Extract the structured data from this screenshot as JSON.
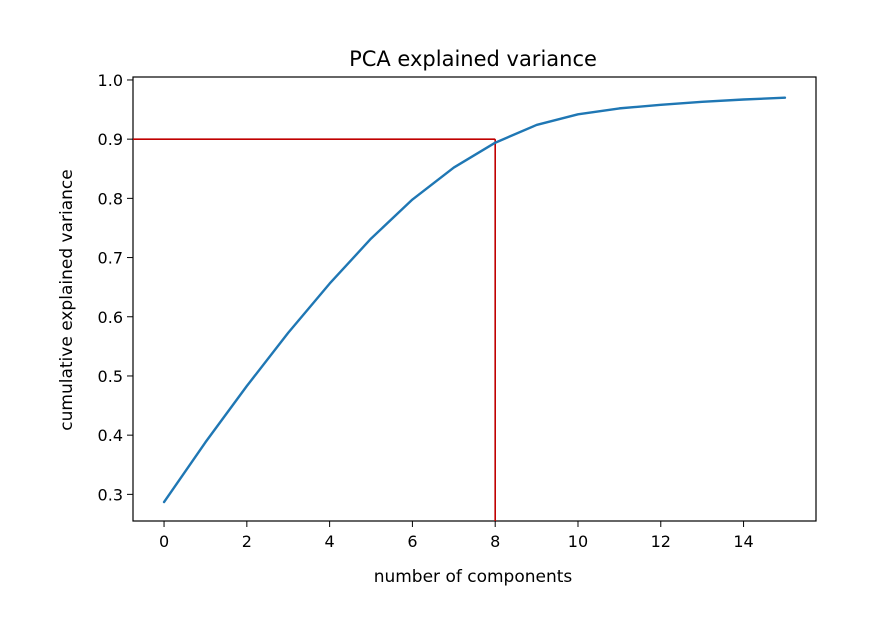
{
  "chart_data": {
    "type": "line",
    "title": "PCA explained variance",
    "xlabel": "number of components",
    "ylabel": "cumulative explained variance",
    "xlim": [
      -0.75,
      15.75
    ],
    "ylim": [
      0.255,
      1.005
    ],
    "x_ticks": [
      0,
      2,
      4,
      6,
      8,
      10,
      12,
      14
    ],
    "y_ticks": [
      0.3,
      0.4,
      0.5,
      0.6,
      0.7,
      0.8,
      0.9,
      1.0
    ],
    "x_tick_labels": [
      "0",
      "2",
      "4",
      "6",
      "8",
      "10",
      "12",
      "14"
    ],
    "y_tick_labels": [
      "0.3",
      "0.4",
      "0.5",
      "0.6",
      "0.7",
      "0.8",
      "0.9",
      "1.0"
    ],
    "grid": false,
    "series": [
      {
        "color": "#1f77b4",
        "x": [
          0,
          1,
          2,
          3,
          4,
          5,
          6,
          7,
          8,
          9,
          10,
          11,
          12,
          13,
          14,
          15
        ],
        "values": [
          0.287,
          0.388,
          0.483,
          0.573,
          0.656,
          0.732,
          0.798,
          0.852,
          0.894,
          0.924,
          0.942,
          0.952,
          0.958,
          0.963,
          0.967,
          0.97
        ]
      }
    ],
    "reference_lines": [
      {
        "type": "horizontal",
        "y": 0.9,
        "x_from": -0.75,
        "x_to": 8,
        "color": "#c00000"
      },
      {
        "type": "vertical",
        "x": 8,
        "y_from": 0.255,
        "y_to": 0.9,
        "color": "#c00000"
      }
    ]
  }
}
